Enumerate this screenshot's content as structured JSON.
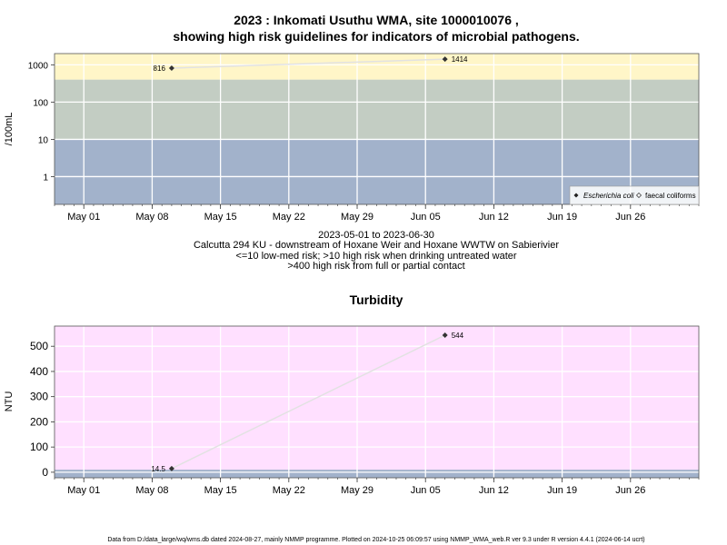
{
  "title_line1": "2023 : Inkomati Usuthu WMA, site 1000010076 ,",
  "title_line2": "showing high risk guidelines for indicators of microbial pathogens.",
  "caption_line1": "2023-05-01 to 2023-06-30",
  "caption_line2": "Calcutta 294 KU - downstream of Hoxane Weir and Hoxane WWTW on Sabierivier",
  "caption_line3": "<=10 low-med risk; >10 high risk when drinking untreated water",
  "caption_line4": ">400 high risk from full or partial contact",
  "footer": "Data from D:/data_large/wq/wms.db dated 2024-08-27, mainly NMMP programme. Plotted on 2024-10-25 06:09:57 using NMMP_WMA_web.R ver 9.3 under R version 4.4.1 (2024-06-14 ucrt)",
  "colors": {
    "high_risk_contact": "#fff6c8",
    "high_risk_drinking": "#c3cdc3",
    "low_risk": "#a2b2cb",
    "turbidity_bg": "#ffe0ff",
    "turbidity_band": "#a2b2cb",
    "grid": "#ffffff",
    "line": "#e2e2e2",
    "point": "#333333"
  },
  "x_ticks": [
    "May 01",
    "May 08",
    "May 15",
    "May 22",
    "May 29",
    "Jun 05",
    "Jun 12",
    "Jun 19",
    "Jun 26"
  ],
  "chart_data": [
    {
      "type": "line",
      "scale": "log",
      "ylabel": "/100mL",
      "xlim": [
        "2023-04-28",
        "2023-07-03"
      ],
      "ylim": [
        0.18,
        2000
      ],
      "y_ticks": [
        1,
        10,
        100,
        1000
      ],
      "y_tick_labels": [
        "1",
        "10",
        "100",
        "1000"
      ],
      "bands": [
        {
          "from": 400,
          "to": 2000,
          "color": "high_risk_contact"
        },
        {
          "from": 10,
          "to": 400,
          "color": "high_risk_drinking"
        },
        {
          "from": 0.18,
          "to": 10,
          "color": "low_risk"
        }
      ],
      "legend_position": "bottom-right",
      "legend": [
        {
          "label": "Escherichia coli",
          "marker": "filled-diamond"
        },
        {
          "label": "faecal coliforms",
          "marker": "open-diamond"
        }
      ],
      "series": [
        {
          "x": [
            "2023-05-10",
            "2023-06-07"
          ],
          "values": [
            816,
            1414
          ],
          "labels": [
            "816",
            "1414"
          ]
        }
      ]
    },
    {
      "type": "line",
      "title": "Turbidity",
      "ylabel": "NTU",
      "xlim": [
        "2023-04-28",
        "2023-07-03"
      ],
      "ylim": [
        -22,
        580
      ],
      "y_ticks": [
        0,
        100,
        200,
        300,
        400,
        500
      ],
      "y_tick_labels": [
        "0",
        "100",
        "200",
        "300",
        "400",
        "500"
      ],
      "bands": [
        {
          "from": -22,
          "to": 10,
          "color": "turbidity_band"
        }
      ],
      "series": [
        {
          "x": [
            "2023-05-10",
            "2023-06-07"
          ],
          "values": [
            14.5,
            544
          ],
          "labels": [
            "14.5",
            "544"
          ]
        }
      ]
    }
  ]
}
